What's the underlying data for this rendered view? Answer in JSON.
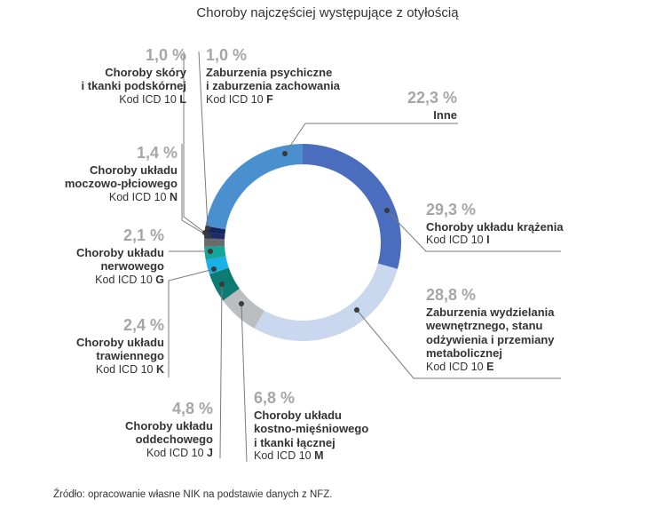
{
  "title": "Choroby najczęściej występujące z otyłością",
  "source": "Źródło: opracowanie własne NIK na podstawie danych z NFZ.",
  "chart_data": {
    "type": "pie",
    "donut": true,
    "title": "Choroby najczęściej występujące z otyłością",
    "slices": [
      {
        "name": "Choroby układu krążenia",
        "name_lines": [
          "Choroby układu krążenia"
        ],
        "value": 29.3,
        "value_label": "29,3 %",
        "code_prefix": "Kod ICD 10",
        "code": "I",
        "color": "#4a6dbd"
      },
      {
        "name": "Zaburzenia wydzielania wewnętrznego, stanu odżywienia i przemiany metabolicznej",
        "name_lines": [
          "Zaburzenia wydzielania",
          "wewnętrznego, stanu",
          "odżywienia i przemiany",
          "metabolicznej"
        ],
        "value": 28.8,
        "value_label": "28,8 %",
        "code_prefix": "Kod ICD 10",
        "code": "E",
        "color": "#c9d7ef"
      },
      {
        "name": "Choroby układu kostno-mięśniowego i tkanki łącznej",
        "name_lines": [
          "Choroby układu",
          "kostno-mięśniowego",
          "i tkanki łącznej"
        ],
        "value": 6.8,
        "value_label": "6,8 %",
        "code_prefix": "Kod ICD 10",
        "code": "M",
        "color": "#bcbdc0"
      },
      {
        "name": "Choroby układu oddechowego",
        "name_lines": [
          "Choroby układu",
          "oddechowego"
        ],
        "value": 4.8,
        "value_label": "4,8 %",
        "code_prefix": "Kod ICD 10",
        "code": "J",
        "color": "#0e7b73"
      },
      {
        "name": "Choroby układu trawiennego",
        "name_lines": [
          "Choroby układu",
          "trawiennego"
        ],
        "value": 2.4,
        "value_label": "2,4 %",
        "code_prefix": "Kod ICD 10",
        "code": "K",
        "color": "#1ab0e8"
      },
      {
        "name": "Choroby układu nerwowego",
        "name_lines": [
          "Choroby układu",
          "nerwowego"
        ],
        "value": 2.1,
        "value_label": "2,1 %",
        "code_prefix": "Kod ICD 10",
        "code": "G",
        "color": "#15a59a"
      },
      {
        "name": "Choroby układu moczowo-płciowego",
        "name_lines": [
          "Choroby układu",
          "moczowo-płciowego"
        ],
        "value": 1.4,
        "value_label": "1,4 %",
        "code_prefix": "Kod ICD 10",
        "code": "N",
        "color": "#6b6b6b"
      },
      {
        "name": "Zaburzenia psychiczne i zaburzenia zachowania",
        "name_lines": [
          "Zaburzenia psychiczne",
          "i zaburzenia zachowania"
        ],
        "value": 1.0,
        "value_label": "1,0 %",
        "code_prefix": "Kod ICD 10",
        "code": "F",
        "color": "#1f2a6b"
      },
      {
        "name": "Choroby skóry i tkanki podskórnej",
        "name_lines": [
          "Choroby skóry",
          "i tkanki podskórnej"
        ],
        "value": 1.0,
        "value_label": "1,0 %",
        "code_prefix": "Kod ICD 10",
        "code": "L",
        "color": "#16255e"
      },
      {
        "name": "Inne",
        "name_lines": [
          "Inne"
        ],
        "value": 22.3,
        "value_label": "22,3 %",
        "code_prefix": "",
        "code": "",
        "color": "#4a90cf"
      }
    ]
  }
}
